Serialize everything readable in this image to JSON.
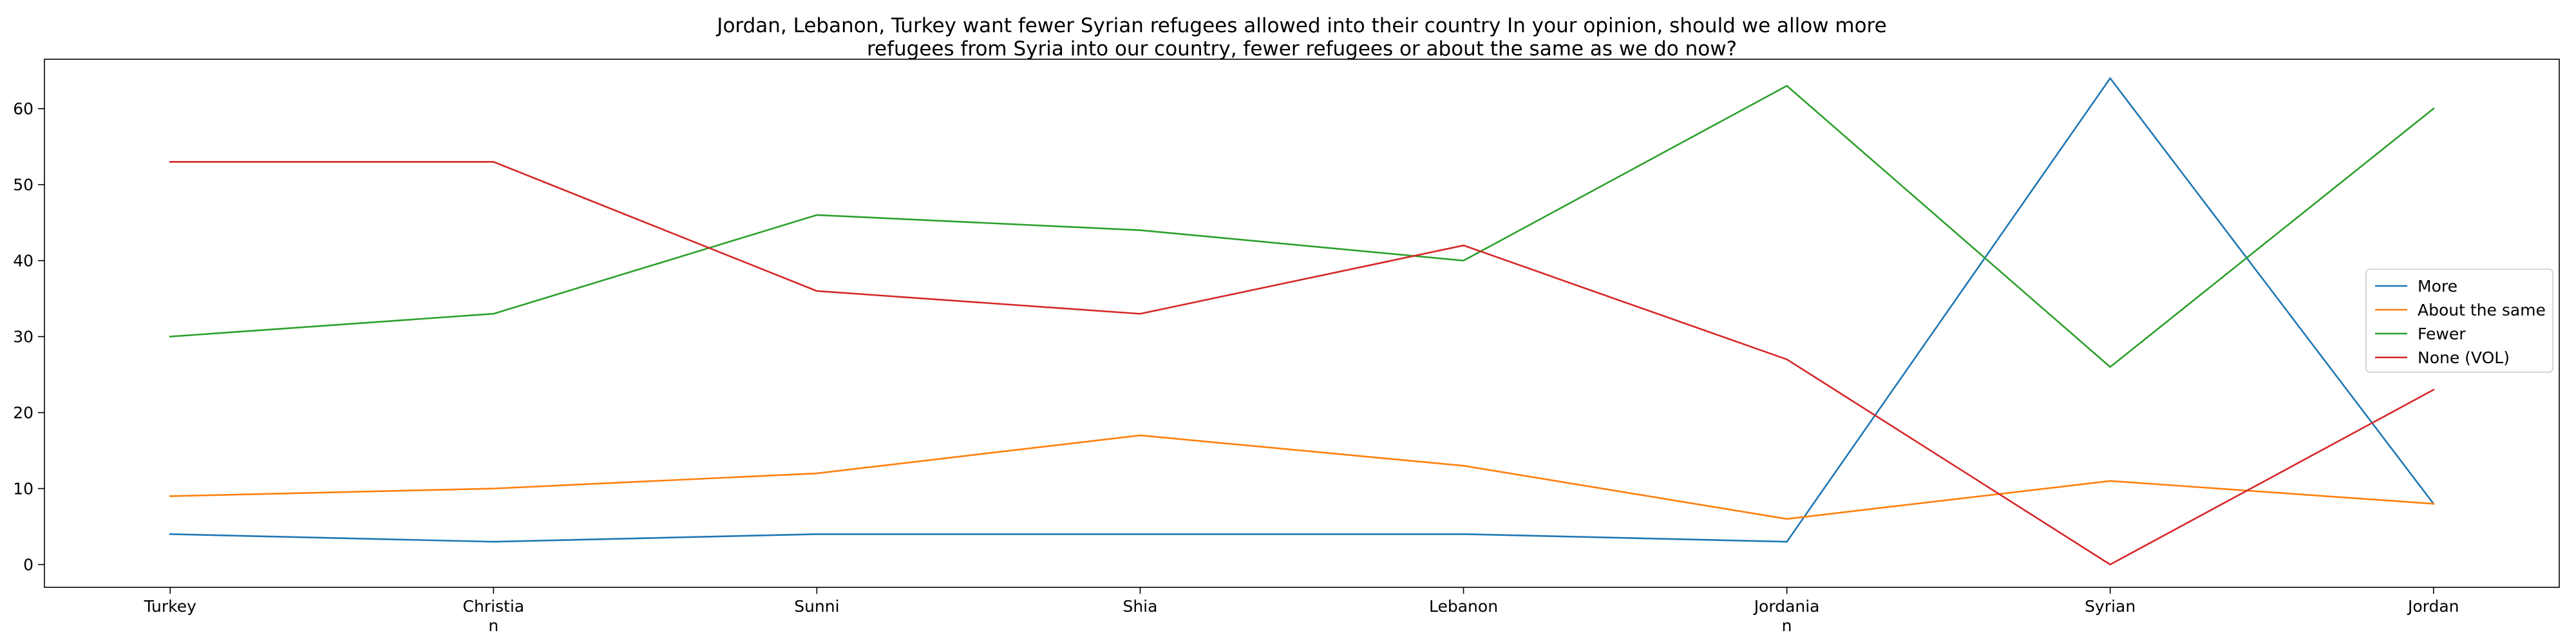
{
  "chart_data": {
    "type": "line",
    "title": "Jordan, Lebanon, Turkey want fewer Syrian refugees allowed into their country In your opinion, should we allow more refugees from Syria into our country, fewer refugees or about the same as we do now?",
    "title_lines": [
      "Jordan, Lebanon, Turkey want fewer Syrian refugees allowed into their country In your opinion, should we allow more",
      "refugees from Syria into our country, fewer refugees or about the same as we do now?"
    ],
    "xlabel": "",
    "ylabel": "",
    "categories": [
      "Turkey",
      "Christian",
      "Sunni",
      "Shia",
      "Lebanon",
      "Jordanian",
      "Syrian",
      "Jordan"
    ],
    "category_labels": [
      [
        "Turkey"
      ],
      [
        "Christia",
        "n"
      ],
      [
        "Sunni"
      ],
      [
        "Shia"
      ],
      [
        "Lebanon"
      ],
      [
        "Jordania",
        "n"
      ],
      [
        "Syrian"
      ],
      [
        "Jordan"
      ]
    ],
    "ylim": [
      -3,
      66.5
    ],
    "yticks": [
      0,
      10,
      20,
      30,
      40,
      50,
      60
    ],
    "grid": false,
    "legend_position": "center-right",
    "series": [
      {
        "name": "More",
        "color": "#1f77b4",
        "values": [
          4,
          3,
          4,
          4,
          4,
          3,
          64,
          8
        ]
      },
      {
        "name": "About the same",
        "color": "#ff7f0e",
        "values": [
          9,
          10,
          12,
          17,
          13,
          6,
          11,
          8
        ]
      },
      {
        "name": "Fewer",
        "color": "#2ca02c",
        "values": [
          30,
          33,
          46,
          44,
          40,
          63,
          26,
          60
        ]
      },
      {
        "name": "None (VOL)",
        "color": "#d62728",
        "values": [
          53,
          53,
          36,
          33,
          42,
          27,
          0,
          23
        ]
      }
    ]
  }
}
